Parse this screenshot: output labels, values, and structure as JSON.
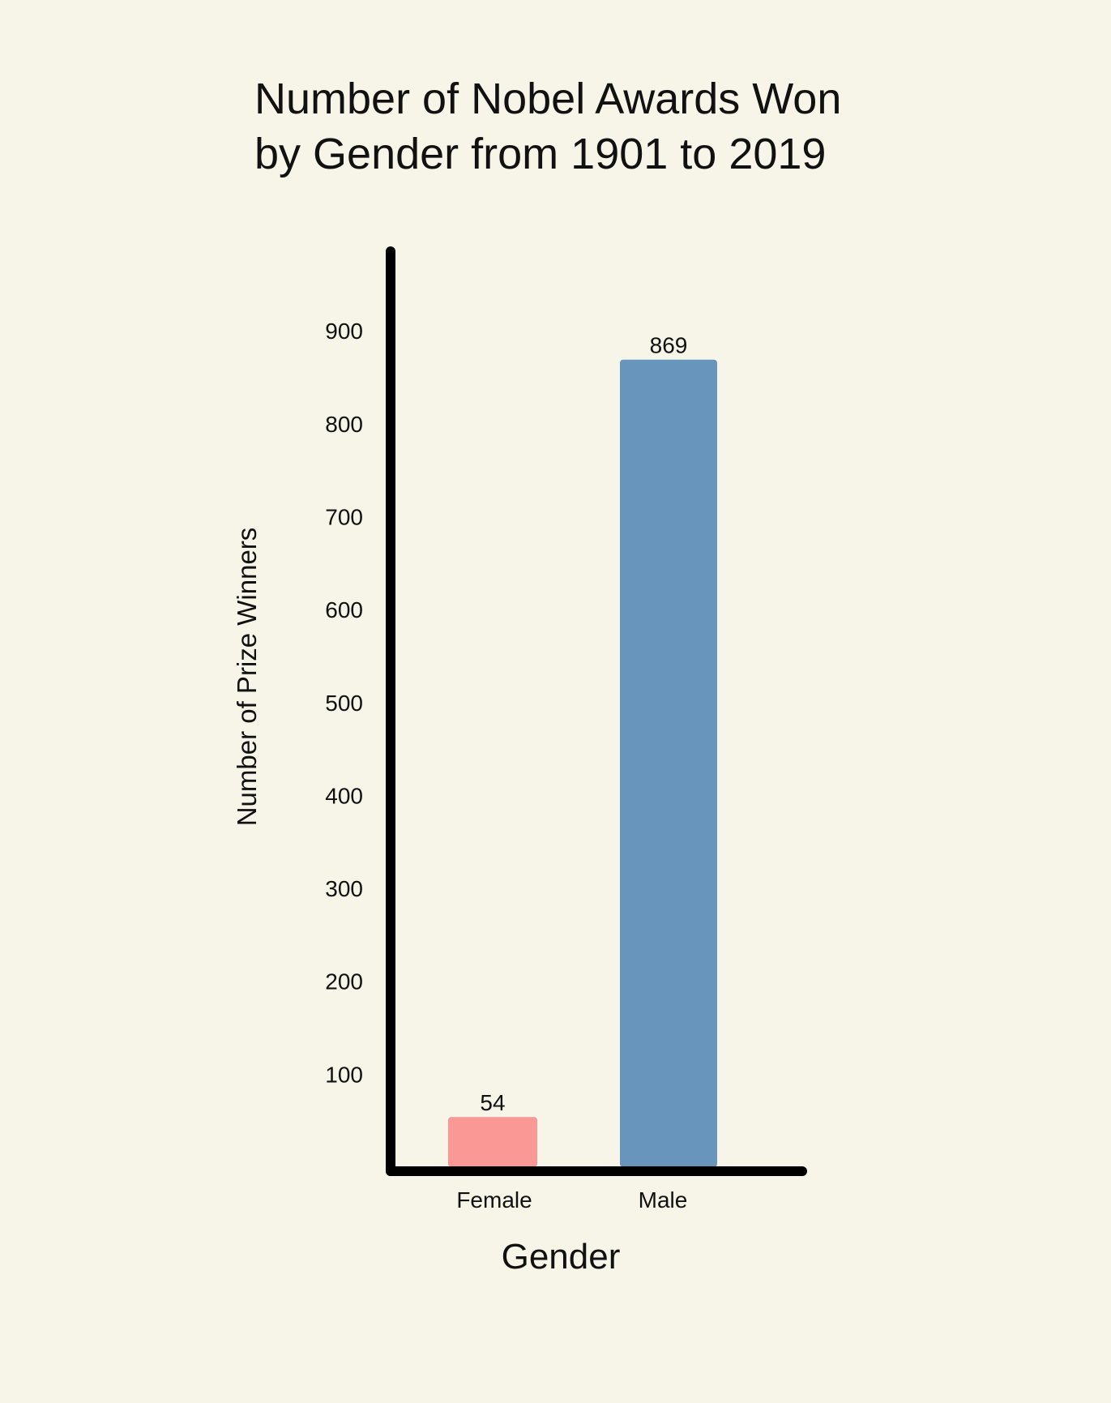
{
  "chart_data": {
    "type": "bar",
    "title_lines": [
      "Number of Nobel Awards Won",
      "by Gender from 1901 to 2019"
    ],
    "title": "Number of Nobel Awards Won by Gender from 1901 to 2019",
    "xlabel": "Gender",
    "ylabel": "Number of Prize Winners",
    "categories": [
      "Female",
      "Male"
    ],
    "values": [
      54,
      869
    ],
    "data_labels": [
      "54",
      "869"
    ],
    "colors": [
      "#f99895",
      "#6795bc"
    ],
    "yticks": [
      100,
      200,
      300,
      400,
      500,
      600,
      700,
      800,
      900
    ],
    "ylim": [
      0,
      1000
    ],
    "grid": false,
    "axis_color": "#000000",
    "background": "#f7f4e8"
  }
}
